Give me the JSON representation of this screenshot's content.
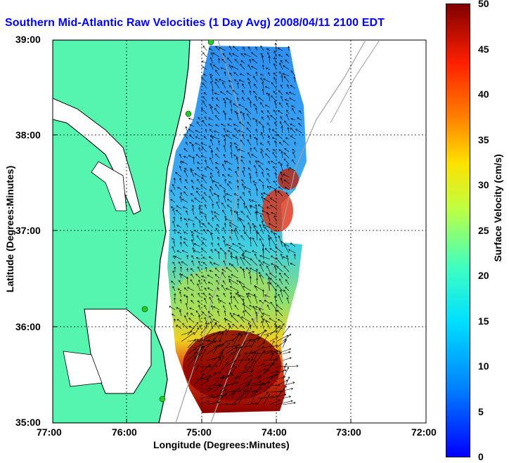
{
  "title": "Southern Mid-Atlantic Raw Velocities (1 Day Avg) 2008/04/11 2100 EDT",
  "map": {
    "x_label": "Longitude (Degrees:Minutes)",
    "y_label": "Latitude (Degrees:Minutes)",
    "x_ticks": [
      "77:00",
      "76:00",
      "75:00",
      "74:00",
      "73:00",
      "72:00"
    ],
    "y_ticks": [
      "39:00",
      "38:00",
      "37:00",
      "36:00",
      "35:00"
    ],
    "land_color": "#55f5b0",
    "coast_color": "#000000",
    "depth_contour_color": "#a0a0a0",
    "station_marker_color": "#22cc22",
    "vector_color": "#000000"
  },
  "colorbar": {
    "label": "Surface Velocity (cm/s)",
    "ticks": [
      "50",
      "45",
      "40",
      "35",
      "30",
      "25",
      "20",
      "15",
      "10",
      "5",
      "0"
    ],
    "min": 0,
    "max": 50,
    "colormap": "jet"
  }
}
